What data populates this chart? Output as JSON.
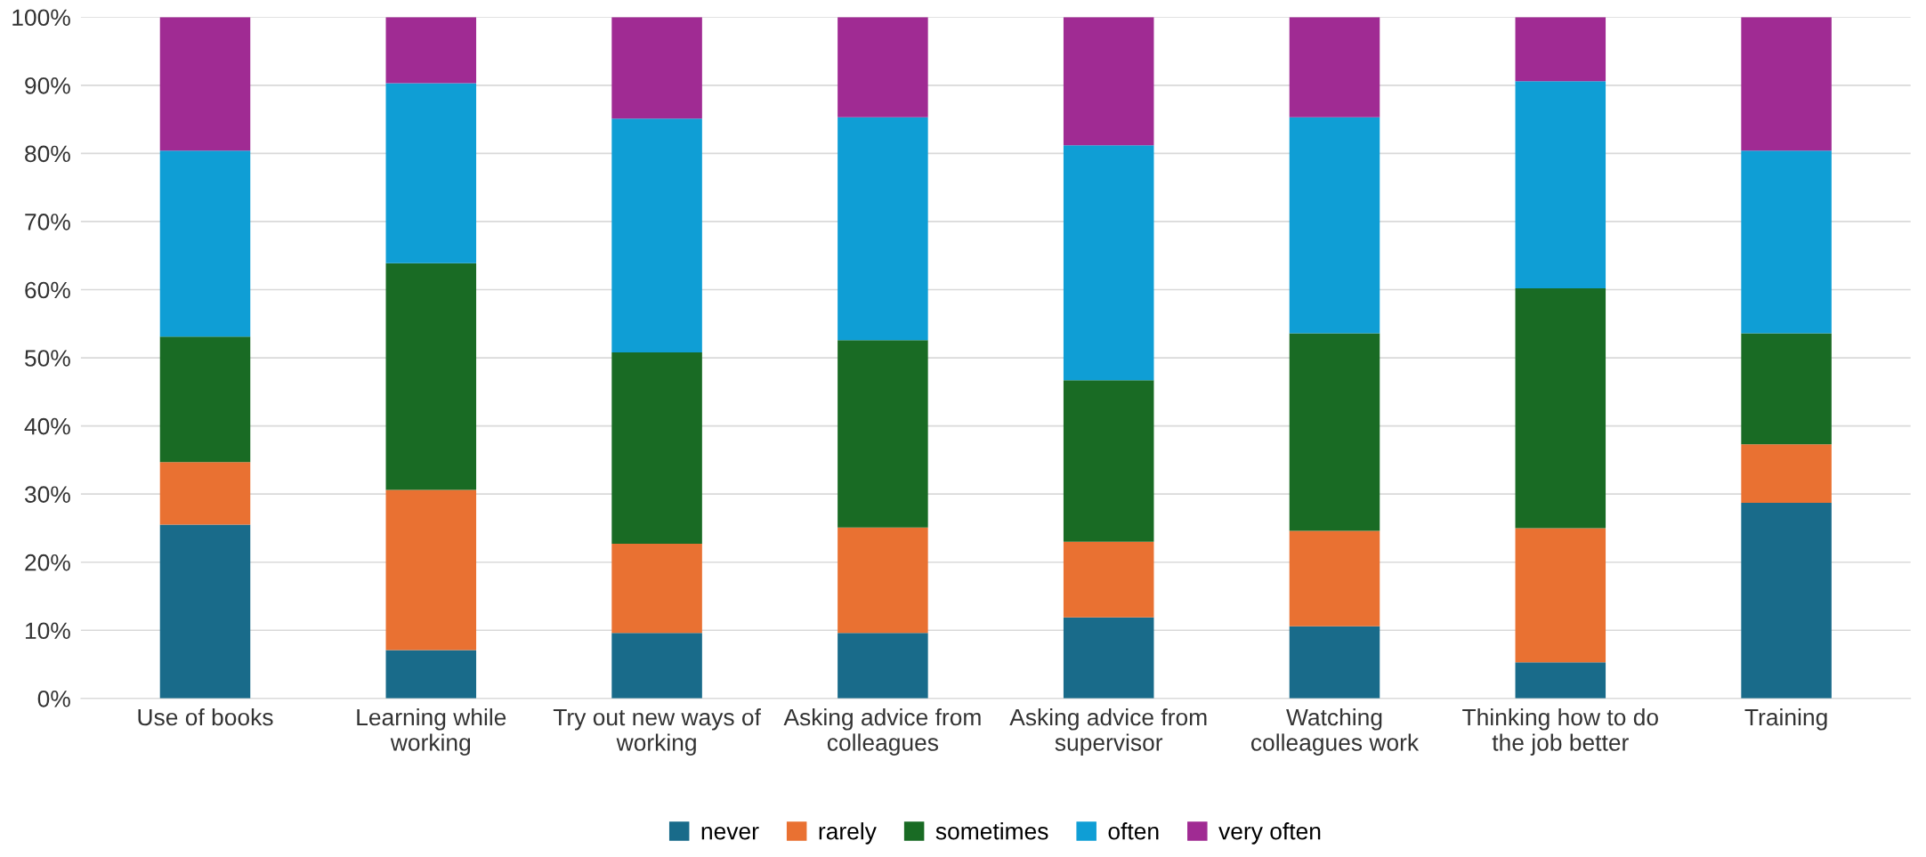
{
  "chart_data": {
    "type": "bar",
    "stacked": true,
    "categories": [
      "Use of books",
      "Learning while\nworking",
      "Try out new ways of\nworking",
      "Asking advice from\ncolleagues",
      "Asking advice from\nsupervisor",
      "Watching\ncolleagues work",
      "Thinking how to do\nthe job better",
      "Training"
    ],
    "series": [
      {
        "name": "never",
        "color": "#196b8a",
        "values": [
          25.5,
          7.1,
          9.6,
          9.6,
          11.9,
          10.6,
          5.3,
          28.7
        ]
      },
      {
        "name": "rarely",
        "color": "#e97132",
        "values": [
          9.2,
          23.5,
          13.1,
          15.5,
          11.1,
          14.0,
          19.7,
          8.6
        ]
      },
      {
        "name": "sometimes",
        "color": "#196b24",
        "values": [
          18.4,
          33.3,
          28.1,
          27.5,
          23.7,
          29.0,
          35.2,
          16.3
        ]
      },
      {
        "name": "often",
        "color": "#0f9ed5",
        "values": [
          27.3,
          26.4,
          34.3,
          32.7,
          34.5,
          31.7,
          30.4,
          26.8
        ]
      },
      {
        "name": "very often",
        "color": "#a02b93",
        "values": [
          19.6,
          9.7,
          14.9,
          14.7,
          18.8,
          14.7,
          9.4,
          19.6
        ]
      }
    ],
    "ylim": [
      0,
      100
    ],
    "yticks": [
      {
        "value": 0,
        "label": "0%"
      },
      {
        "value": 10,
        "label": "10%"
      },
      {
        "value": 20,
        "label": "20%"
      },
      {
        "value": 30,
        "label": "30%"
      },
      {
        "value": 40,
        "label": "40%"
      },
      {
        "value": 50,
        "label": "50%"
      },
      {
        "value": 60,
        "label": "60%"
      },
      {
        "value": 70,
        "label": "70%"
      },
      {
        "value": 80,
        "label": "80%"
      },
      {
        "value": 90,
        "label": "90%"
      },
      {
        "value": 100,
        "label": "100%"
      }
    ],
    "grid": "y",
    "legend": "bottom"
  }
}
